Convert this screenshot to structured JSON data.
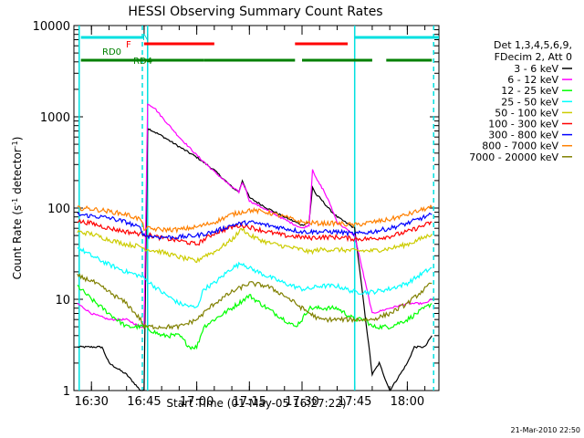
{
  "chart_data": {
    "type": "line",
    "title": "HESSI Observing Summary Count Rates",
    "xlabel": "Start Time (01-May-05 16:27:22)",
    "ylabel_main": "Count Rate (s",
    "ylabel_sup1": "-1",
    "ylabel_mid": " detector",
    "ylabel_sup2": "-1",
    "ylabel_end": ")",
    "y_scale": "log",
    "ylim": [
      1,
      10000
    ],
    "xlim_minutes": [
      -5,
      99
    ],
    "x_ticks": [
      {
        "minute": 0,
        "label": "16:30"
      },
      {
        "minute": 15,
        "label": "16:45"
      },
      {
        "minute": 30,
        "label": "17:00"
      },
      {
        "minute": 45,
        "label": "17:15"
      },
      {
        "minute": 60,
        "label": "17:30"
      },
      {
        "minute": 75,
        "label": "17:45"
      },
      {
        "minute": 90,
        "label": "18:00"
      }
    ],
    "y_ticks": [
      {
        "value": 1,
        "label": "1"
      },
      {
        "value": 10,
        "label": "10"
      },
      {
        "value": 100,
        "label": "100"
      },
      {
        "value": 1000,
        "label": "1000"
      },
      {
        "value": 10000,
        "label": "10000"
      }
    ],
    "legend": {
      "position": "right",
      "header": [
        "Det 1,3,4,5,6,9,",
        "FDecim 2, Att 0"
      ]
    },
    "flags": [
      {
        "label": "N",
        "color": "#00e0e0",
        "segments": [
          [
            -3,
            15
          ],
          [
            75,
            99
          ]
        ]
      },
      {
        "label": "F",
        "color": "#ff0000",
        "segments": [
          [
            15,
            35
          ],
          [
            58,
            73
          ]
        ]
      },
      {
        "label": "RD0",
        "color": "#008000",
        "segments": [
          [
            -3,
            15
          ]
        ]
      },
      {
        "label": "RD4",
        "color": "#008000",
        "segments": [
          [
            15,
            32
          ],
          [
            32,
            58
          ],
          [
            60,
            80
          ],
          [
            84,
            97
          ]
        ]
      }
    ],
    "vlines_solid": [
      -3.5,
      16,
      75
    ],
    "vlines_dashed": [
      14.5,
      97.5
    ],
    "series": [
      {
        "name": "3 - 6 keV",
        "color": "#000000",
        "x": [
          -4,
          3,
          5,
          10,
          14,
          15,
          16,
          20,
          25,
          30,
          35,
          40,
          42,
          43,
          45,
          50,
          55,
          60,
          62,
          63,
          64,
          65,
          68,
          70,
          75,
          80,
          82,
          85,
          90,
          92,
          95,
          97
        ],
        "y": [
          3,
          3,
          2,
          1.5,
          1,
          1,
          750,
          620,
          470,
          360,
          260,
          170,
          150,
          200,
          130,
          100,
          80,
          65,
          70,
          170,
          140,
          130,
          95,
          80,
          60,
          1.5,
          2,
          1,
          2,
          3,
          3,
          4
        ]
      },
      {
        "name": "6 - 12 keV",
        "color": "#ff00ff",
        "x": [
          -4,
          0,
          5,
          10,
          14,
          15,
          16,
          18,
          20,
          25,
          30,
          35,
          40,
          42,
          43,
          44,
          45,
          50,
          55,
          60,
          62,
          63,
          64,
          66,
          68,
          70,
          75,
          80,
          85,
          90,
          95,
          97
        ],
        "y": [
          9,
          7,
          6,
          6,
          5,
          5,
          1400,
          1250,
          1000,
          600,
          380,
          250,
          170,
          150,
          190,
          160,
          120,
          95,
          75,
          60,
          65,
          270,
          210,
          160,
          110,
          70,
          50,
          7,
          8,
          9,
          9,
          10
        ]
      },
      {
        "name": "12 - 25 keV",
        "color": "#00ff00",
        "x": [
          -4,
          0,
          5,
          10,
          14,
          15,
          20,
          25,
          28,
          30,
          32,
          35,
          40,
          45,
          50,
          55,
          58,
          60,
          62,
          65,
          70,
          75,
          78,
          80,
          85,
          90,
          95,
          97
        ],
        "y": [
          14,
          10,
          7,
          5,
          5,
          5,
          4,
          4,
          3,
          3,
          5,
          6,
          8,
          11,
          8,
          6,
          5,
          6,
          8,
          8,
          8,
          6,
          6,
          5,
          5,
          6,
          8,
          9
        ]
      },
      {
        "name": "25 - 50 keV",
        "color": "#00ffff",
        "x": [
          -4,
          0,
          5,
          10,
          14,
          15,
          20,
          25,
          30,
          32,
          35,
          40,
          43,
          45,
          50,
          55,
          60,
          62,
          65,
          70,
          75,
          78,
          80,
          85,
          90,
          95,
          97
        ],
        "y": [
          37,
          30,
          24,
          20,
          18,
          17,
          12,
          9,
          8,
          13,
          15,
          22,
          25,
          22,
          18,
          15,
          13,
          13,
          14,
          14,
          12,
          12,
          12,
          13,
          15,
          20,
          22
        ]
      },
      {
        "name": "50 - 100 keV",
        "color": "#cccc00",
        "x": [
          -4,
          0,
          5,
          10,
          14,
          15,
          20,
          25,
          30,
          32,
          35,
          40,
          43,
          45,
          50,
          55,
          60,
          62,
          65,
          70,
          75,
          78,
          80,
          85,
          90,
          95,
          97
        ],
        "y": [
          55,
          52,
          45,
          40,
          38,
          36,
          33,
          29,
          26,
          30,
          33,
          45,
          60,
          50,
          42,
          38,
          35,
          33,
          35,
          35,
          34,
          34,
          34,
          36,
          40,
          48,
          52
        ]
      },
      {
        "name": "100 - 300 keV",
        "color": "#ff0000",
        "x": [
          -4,
          0,
          5,
          10,
          14,
          15,
          20,
          25,
          30,
          32,
          35,
          40,
          43,
          45,
          50,
          55,
          60,
          62,
          65,
          70,
          75,
          78,
          80,
          85,
          90,
          95,
          97
        ],
        "y": [
          72,
          68,
          60,
          55,
          52,
          52,
          47,
          44,
          40,
          45,
          53,
          62,
          65,
          62,
          55,
          50,
          48,
          47,
          48,
          48,
          46,
          46,
          46,
          49,
          55,
          65,
          70
        ]
      },
      {
        "name": "300 - 800 keV",
        "color": "#0000ff",
        "x": [
          -4,
          0,
          5,
          10,
          14,
          15,
          20,
          25,
          30,
          35,
          40,
          45,
          50,
          55,
          60,
          65,
          70,
          75,
          80,
          85,
          90,
          95,
          97
        ],
        "y": [
          85,
          82,
          78,
          70,
          60,
          50,
          48,
          48,
          50,
          55,
          65,
          70,
          65,
          60,
          55,
          55,
          55,
          52,
          55,
          60,
          68,
          80,
          85
        ]
      },
      {
        "name": "800 - 7000 keV",
        "color": "#ff8000",
        "x": [
          -4,
          0,
          5,
          10,
          14,
          15,
          20,
          25,
          30,
          35,
          40,
          45,
          50,
          55,
          60,
          65,
          70,
          75,
          80,
          85,
          90,
          95,
          97
        ],
        "y": [
          100,
          98,
          92,
          85,
          75,
          60,
          58,
          58,
          62,
          70,
          85,
          95,
          90,
          80,
          70,
          68,
          68,
          65,
          70,
          75,
          85,
          98,
          102
        ]
      },
      {
        "name": "7000 - 20000 keV",
        "color": "#808000",
        "x": [
          -4,
          0,
          5,
          10,
          14,
          15,
          20,
          25,
          30,
          35,
          40,
          45,
          50,
          55,
          60,
          65,
          70,
          75,
          80,
          85,
          90,
          95,
          97
        ],
        "y": [
          18,
          16,
          12,
          9,
          6,
          5,
          5,
          5,
          6,
          9,
          12,
          15,
          14,
          11,
          8,
          6,
          6,
          6,
          6,
          7,
          9,
          13,
          15
        ]
      }
    ]
  },
  "footer": {
    "timestamp": "21-Mar-2010 22:50"
  }
}
